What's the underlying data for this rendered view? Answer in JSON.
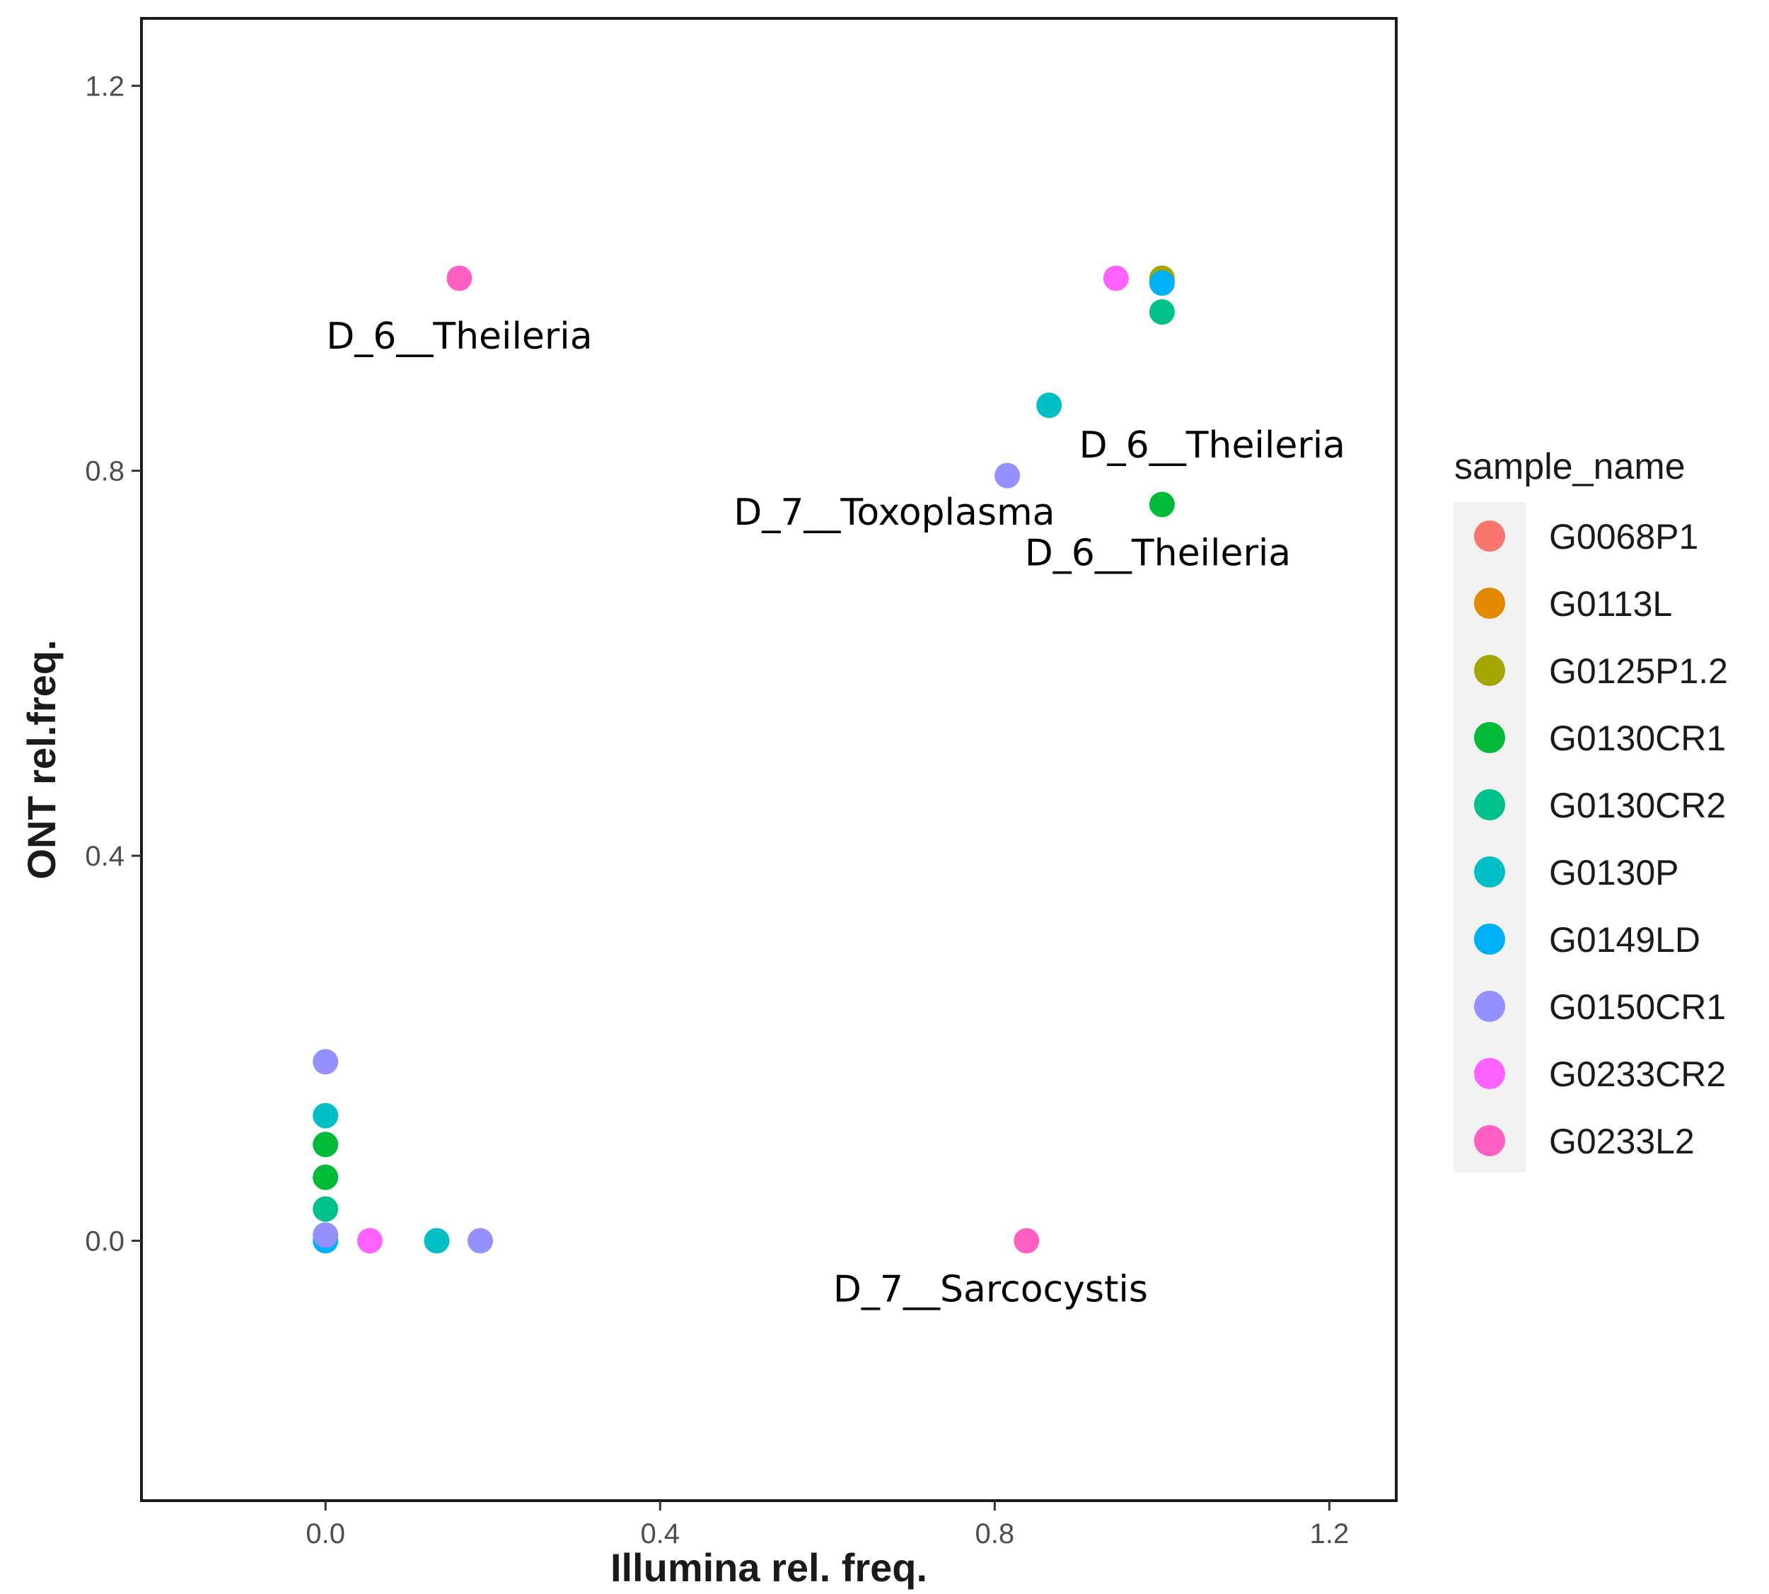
{
  "chart_data": {
    "type": "scatter",
    "xlabel": "Illumina rel. freq.",
    "ylabel": "ONT rel.freq.",
    "xlim": [
      -0.22,
      1.28
    ],
    "ylim": [
      -0.27,
      1.27
    ],
    "xticks": [
      0.0,
      0.4,
      0.8,
      1.2
    ],
    "yticks": [
      0.0,
      0.4,
      0.8,
      1.2
    ],
    "xtick_labels": [
      "0.0",
      "0.4",
      "0.8",
      "1.2"
    ],
    "ytick_labels": [
      "0.0",
      "0.4",
      "0.8",
      "1.2"
    ],
    "grid": false,
    "legend": {
      "title": "sample_name",
      "position": "right",
      "entries": [
        {
          "name": "G0068P1",
          "color": "#F8766D"
        },
        {
          "name": "G0113L",
          "color": "#E38900"
        },
        {
          "name": "G0125P1.2",
          "color": "#A3A500"
        },
        {
          "name": "G0130CR1",
          "color": "#00BA38"
        },
        {
          "name": "G0130CR2",
          "color": "#00C08B"
        },
        {
          "name": "G0130P",
          "color": "#00BFC4"
        },
        {
          "name": "G0149LD",
          "color": "#00B0F6"
        },
        {
          "name": "G0150CR1",
          "color": "#9590FF"
        },
        {
          "name": "G0233CR2",
          "color": "#FF62FF"
        },
        {
          "name": "G0233L2",
          "color": "#FF61C3"
        }
      ]
    },
    "points": [
      {
        "series": "G0233L2",
        "x": 0.16,
        "y": 1.0
      },
      {
        "series": "G0233CR2",
        "x": 0.945,
        "y": 1.0
      },
      {
        "series": "G0113L",
        "x": 1.0,
        "y": 1.0
      },
      {
        "series": "G0125P1.2",
        "x": 1.0,
        "y": 1.0
      },
      {
        "series": "G0149LD",
        "x": 1.0,
        "y": 0.995
      },
      {
        "series": "G0130CR2",
        "x": 1.0,
        "y": 0.965
      },
      {
        "series": "G0130P",
        "x": 0.865,
        "y": 0.868
      },
      {
        "series": "G0150CR1",
        "x": 0.815,
        "y": 0.795
      },
      {
        "series": "G0130CR1",
        "x": 1.0,
        "y": 0.765
      },
      {
        "series": "G0150CR1",
        "x": 0.0,
        "y": 0.186
      },
      {
        "series": "G0130P",
        "x": 0.0,
        "y": 0.13
      },
      {
        "series": "G0130CR1",
        "x": 0.0,
        "y": 0.1
      },
      {
        "series": "G0130CR1",
        "x": 0.0,
        "y": 0.066
      },
      {
        "series": "G0130CR2",
        "x": 0.0,
        "y": 0.033
      },
      {
        "series": "G0149LD",
        "x": 0.0,
        "y": 0.0
      },
      {
        "series": "G0150CR1",
        "x": 0.0,
        "y": 0.006
      },
      {
        "series": "G0233CR2",
        "x": 0.053,
        "y": 0.0
      },
      {
        "series": "G0130P",
        "x": 0.133,
        "y": 0.0
      },
      {
        "series": "G0150CR1",
        "x": 0.185,
        "y": 0.0
      },
      {
        "series": "G0233L2",
        "x": 0.838,
        "y": 0.0
      }
    ],
    "annotations": [
      {
        "text": "D_6__Theileria",
        "x": 0.16,
        "y": 0.94
      },
      {
        "text": "D_6__Theileria",
        "x": 1.06,
        "y": 0.827
      },
      {
        "text": "D_7__Toxoplasma",
        "x": 0.68,
        "y": 0.757
      },
      {
        "text": "D_6__Theileria",
        "x": 0.995,
        "y": 0.715
      },
      {
        "text": "D_7__Sarcocystis",
        "x": 0.795,
        "y": -0.05
      }
    ]
  }
}
